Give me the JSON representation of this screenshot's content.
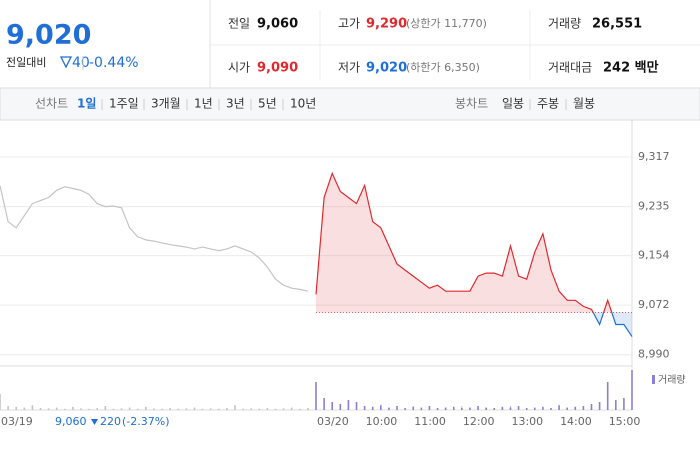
{
  "header": {
    "price": "9,020",
    "change_label": "전일대비",
    "change": "40",
    "change_rate": "-0.44%",
    "stats": [
      {
        "label": "전일",
        "value": "9,060"
      },
      {
        "label": "고가",
        "value": "9,290",
        "note": "(상한가 11,770)",
        "color": "#e0292e"
      },
      {
        "label": "거래량",
        "value": "26,551"
      },
      {
        "label": "시가",
        "value": "9,090",
        "color": "#e0292e"
      },
      {
        "label": "저가",
        "value": "9,020",
        "note": "(하한가 6,350)",
        "color": "#1f6fd6"
      },
      {
        "label": "거래대금",
        "value": "242 백만"
      }
    ]
  },
  "tabs": {
    "line_label": "선차트",
    "line": [
      "1일",
      "1주일",
      "3개월",
      "1년",
      "3년",
      "5년",
      "10년"
    ],
    "line_selected": 0,
    "candle_label": "봉차트",
    "candle": [
      "일봉",
      "주봉",
      "월봉"
    ]
  },
  "chart_data": {
    "type": "line",
    "categories": [
      "03/19",
      null,
      null,
      null,
      null,
      null,
      null,
      null,
      null,
      null,
      null,
      null,
      null,
      null,
      null,
      null,
      null,
      null,
      null,
      null,
      null,
      null,
      null,
      null,
      null,
      null,
      null,
      null,
      null,
      null,
      null,
      null,
      null,
      null,
      null,
      null,
      null,
      null,
      null,
      "03/20",
      null,
      null,
      null,
      null,
      null,
      "10:00",
      null,
      null,
      null,
      null,
      null,
      "11:00",
      null,
      null,
      null,
      null,
      null,
      "12:00",
      null,
      null,
      null,
      null,
      null,
      "13:00",
      null,
      null,
      null,
      null,
      null,
      "14:00",
      null,
      null,
      null,
      null,
      null,
      "15:00",
      null,
      null,
      null
    ],
    "series": [
      {
        "color": "#c4c4c4",
        "values": [
          9270,
          9210,
          9200,
          9220,
          9240,
          9245,
          9250,
          9262,
          9268,
          9265,
          9262,
          9255,
          9240,
          9235,
          9236,
          9233,
          9200,
          9185,
          9180,
          9178,
          9175,
          9172,
          9170,
          9168,
          9165,
          9168,
          9165,
          9162,
          9165,
          9170,
          9165,
          9160,
          9150,
          9135,
          9115,
          9105,
          9100,
          9098,
          9095,
          null,
          null,
          null,
          null,
          null,
          null,
          null,
          null,
          null,
          null,
          null,
          null,
          null,
          null,
          null,
          null,
          null,
          null,
          null,
          null,
          null,
          null,
          null,
          null,
          null,
          null,
          null,
          null,
          null,
          null,
          null,
          null,
          null,
          null,
          null,
          null,
          null,
          null,
          null,
          null
        ]
      },
      {
        "color": "#e0292e",
        "down_color": "#1f6fd6",
        "values": [
          null,
          null,
          null,
          null,
          null,
          null,
          null,
          null,
          null,
          null,
          null,
          null,
          null,
          null,
          null,
          null,
          null,
          null,
          null,
          null,
          null,
          null,
          null,
          null,
          null,
          null,
          null,
          null,
          null,
          null,
          null,
          null,
          null,
          null,
          null,
          null,
          null,
          null,
          null,
          9090,
          9250,
          9290,
          9260,
          9250,
          9240,
          9270,
          9210,
          9200,
          9170,
          9140,
          9130,
          9120,
          9110,
          9100,
          9105,
          9095,
          9095,
          9095,
          9095,
          9120,
          9125,
          9125,
          9120,
          9170,
          9120,
          9115,
          9160,
          9190,
          9130,
          9095,
          9080,
          9080,
          9070,
          9065,
          9040,
          9080,
          9040,
          9040,
          9020
        ]
      }
    ],
    "baseline": 9060,
    "volume": {
      "name": "거래량",
      "color": "#8b7fd3",
      "prev_color": "#c4c4c4",
      "values": [
        40,
        10,
        8,
        6,
        12,
        5,
        4,
        6,
        3,
        8,
        4,
        3,
        5,
        10,
        3,
        4,
        6,
        3,
        8,
        4,
        3,
        5,
        3,
        4,
        6,
        3,
        4,
        3,
        5,
        12,
        3,
        4,
        3,
        5,
        3,
        4,
        6,
        3,
        5,
        70,
        30,
        20,
        15,
        25,
        20,
        10,
        8,
        12,
        6,
        10,
        5,
        8,
        6,
        10,
        5,
        6,
        8,
        5,
        6,
        10,
        6,
        5,
        8,
        6,
        10,
        5,
        6,
        8,
        5,
        12,
        6,
        8,
        10,
        15,
        20,
        70,
        25,
        30,
        100
      ]
    },
    "ylim": [
      8973,
      9370
    ],
    "yticks": [
      {
        "value": 9317,
        "label": "9,317"
      },
      {
        "value": 9235,
        "label": "9,235"
      },
      {
        "value": 9154,
        "label": "9,154"
      },
      {
        "value": 9072,
        "label": "9,072"
      },
      {
        "value": 8990,
        "label": "8,990"
      }
    ],
    "grid": true,
    "prev_day_summary": {
      "close": "9,060",
      "change": "220",
      "change_rate": "(-2.37%)"
    }
  }
}
